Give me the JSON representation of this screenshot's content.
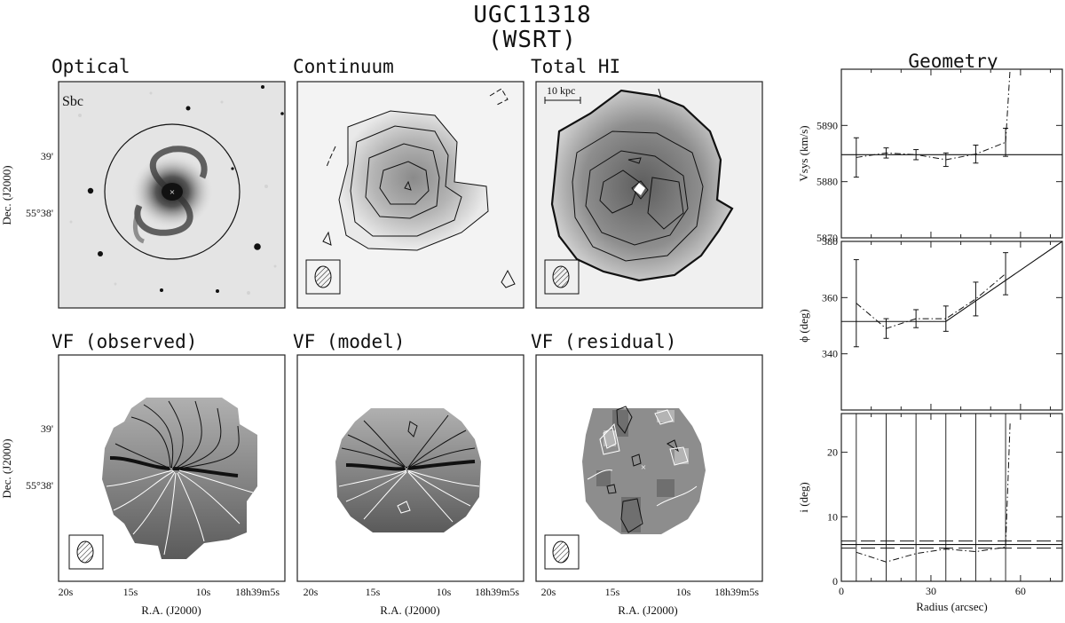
{
  "title": {
    "line1": "UGC11318",
    "line2": "(WSRT)"
  },
  "panels": {
    "optical": {
      "title": "Optical",
      "hubble_type": "Sbc"
    },
    "continuum": {
      "title": "Continuum"
    },
    "total_hi": {
      "title": "Total HI",
      "scale_bar": "10 kpc"
    },
    "vf_obs": {
      "title": "VF (observed)"
    },
    "vf_model": {
      "title": "VF (model)"
    },
    "vf_resid": {
      "title": "VF (residual)"
    },
    "geometry": {
      "title": "Geometry"
    }
  },
  "map_axes": {
    "dec_label": "Dec. (J2000)",
    "dec_ticks": [
      "39'",
      "55°38'"
    ],
    "ra_label": "R.A. (J2000)",
    "ra_ticks": [
      "20s",
      "15s",
      "10s",
      "18h39m5s"
    ]
  },
  "colors": {
    "frame": "#222222",
    "contour_dark": "#111111",
    "contour_light": "#ffffff"
  },
  "chart_data": [
    {
      "type": "line",
      "title": "",
      "xlabel": "Radius (arcsec)",
      "ylabel": "Vsys (km/s)",
      "xlim": [
        0,
        74
      ],
      "ylim": [
        5870,
        5900
      ],
      "yticks": [
        "5870",
        "5880",
        "5890"
      ],
      "series": [
        {
          "x": [
            5,
            15,
            25,
            35,
            45,
            55
          ],
          "y": [
            5884.3,
            5885.1,
            5884.8,
            5883.9,
            5884.9,
            5887.0
          ],
          "err": [
            3.5,
            0.9,
            0.9,
            1.2,
            1.6,
            2.5
          ]
        }
      ],
      "adopted": 5884.8
    },
    {
      "type": "line",
      "title": "",
      "xlabel": "Radius (arcsec)",
      "ylabel": "ϕ (deg)",
      "xlim": [
        0,
        74
      ],
      "ylim": [
        320,
        380
      ],
      "yticks": [
        "340",
        "360",
        "380"
      ],
      "series": [
        {
          "x": [
            5,
            15,
            25,
            35,
            45,
            55
          ],
          "y": [
            358,
            349,
            352.5,
            352.5,
            359.5,
            368.5
          ],
          "err": [
            15.5,
            3.5,
            3.2,
            4.5,
            6.0,
            7.5
          ]
        }
      ],
      "adopted_model": {
        "x": [
          0,
          35,
          74
        ],
        "y": [
          351.5,
          351.5,
          380
        ]
      }
    },
    {
      "type": "line",
      "title": "",
      "xlabel": "Radius (arcsec)",
      "ylabel": "i (deg)",
      "xlim": [
        0,
        74
      ],
      "ylim": [
        0,
        26
      ],
      "xticks": [
        "0",
        "30",
        "60"
      ],
      "yticks": [
        "0",
        "10",
        "20"
      ],
      "series": [
        {
          "x": [
            5,
            15,
            25,
            35,
            45,
            55,
            56.5
          ],
          "y": [
            4.5,
            3.0,
            4.3,
            5.0,
            4.6,
            5.3,
            24.5
          ]
        }
      ],
      "adopted": 5.7
    }
  ]
}
